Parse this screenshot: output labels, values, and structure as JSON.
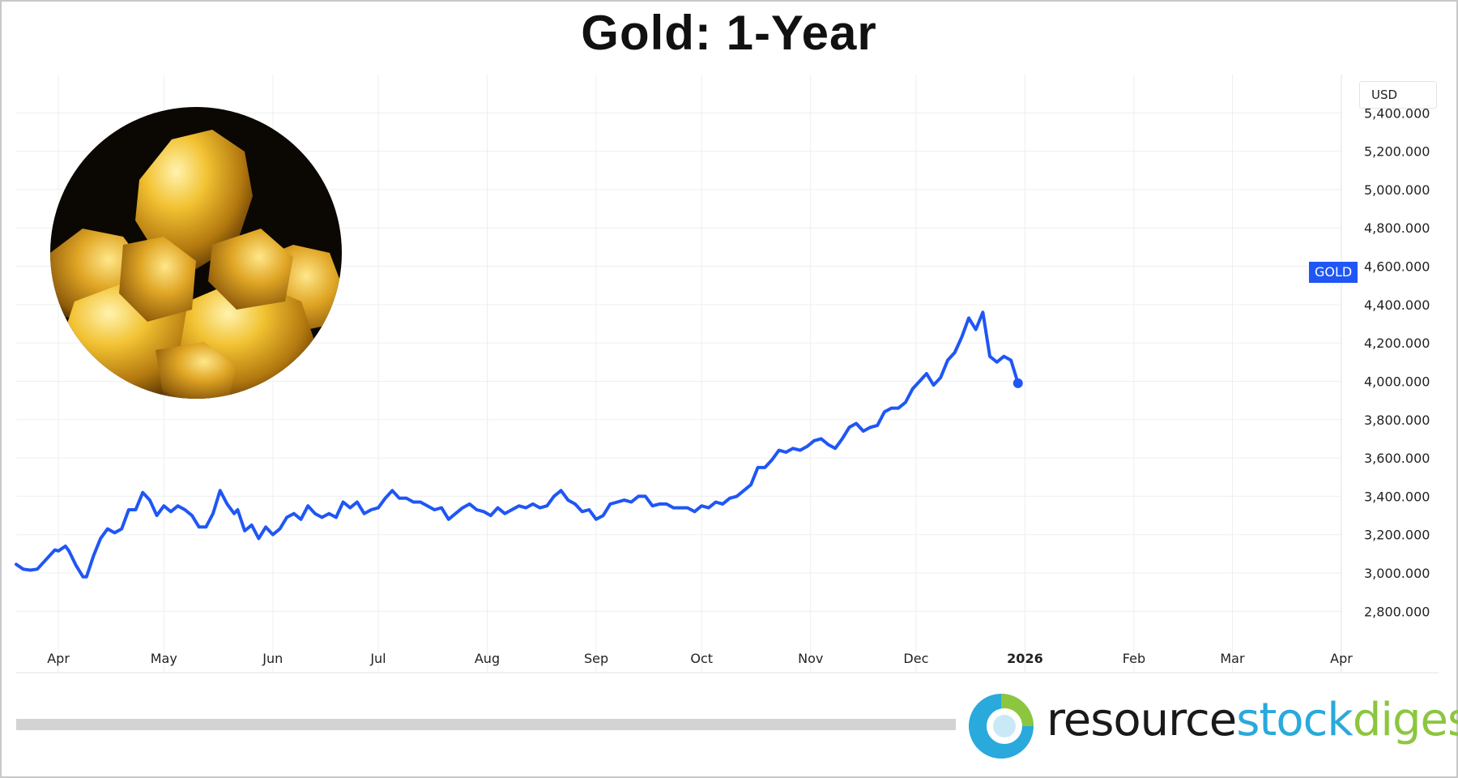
{
  "chart_data": {
    "type": "line",
    "title": "Gold: 1-Year",
    "currency": "USD",
    "y_ticks": [
      "2,800.000",
      "3,000.000",
      "3,200.000",
      "3,400.000",
      "3,600.000",
      "3,800.000",
      "4,000.000",
      "4,200.000",
      "4,400.000",
      "4,600.000",
      "4,800.000",
      "5,000.000",
      "5,200.000",
      "5,400.000"
    ],
    "ylim": [
      2700,
      5600
    ],
    "x_ticks": [
      {
        "label": "Apr",
        "date": "2025-04-01"
      },
      {
        "label": "May",
        "date": "2025-05-01"
      },
      {
        "label": "Jun",
        "date": "2025-06-01"
      },
      {
        "label": "Jul",
        "date": "2025-07-01"
      },
      {
        "label": "Aug",
        "date": "2025-08-01"
      },
      {
        "label": "Sep",
        "date": "2025-09-01"
      },
      {
        "label": "Oct",
        "date": "2025-10-01"
      },
      {
        "label": "Nov",
        "date": "2025-11-01"
      },
      {
        "label": "Dec",
        "date": "2025-12-01"
      },
      {
        "label": "2026",
        "date": "2026-01-01",
        "bold": true
      },
      {
        "label": "Feb",
        "date": "2026-02-01"
      },
      {
        "label": "Mar",
        "date": "2026-03-01"
      },
      {
        "label": "Apr",
        "date": "2026-04-01"
      }
    ],
    "xlim": [
      "2025-03-20",
      "2026-04-01"
    ],
    "grid": true,
    "series": [
      {
        "name": "GOLD",
        "color": "#1f56f5",
        "points": [
          [
            "2025-03-20",
            3045
          ],
          [
            "2025-03-22",
            3020
          ],
          [
            "2025-03-24",
            3015
          ],
          [
            "2025-03-26",
            3020
          ],
          [
            "2025-03-28",
            3060
          ],
          [
            "2025-03-31",
            3120
          ],
          [
            "2025-04-01",
            3115
          ],
          [
            "2025-04-03",
            3140
          ],
          [
            "2025-04-04",
            3115
          ],
          [
            "2025-04-06",
            3040
          ],
          [
            "2025-04-08",
            2980
          ],
          [
            "2025-04-09",
            2980
          ],
          [
            "2025-04-11",
            3090
          ],
          [
            "2025-04-13",
            3180
          ],
          [
            "2025-04-15",
            3230
          ],
          [
            "2025-04-17",
            3210
          ],
          [
            "2025-04-19",
            3230
          ],
          [
            "2025-04-21",
            3330
          ],
          [
            "2025-04-23",
            3330
          ],
          [
            "2025-04-25",
            3420
          ],
          [
            "2025-04-27",
            3380
          ],
          [
            "2025-04-29",
            3300
          ],
          [
            "2025-05-01",
            3350
          ],
          [
            "2025-05-03",
            3320
          ],
          [
            "2025-05-05",
            3350
          ],
          [
            "2025-05-07",
            3330
          ],
          [
            "2025-05-09",
            3300
          ],
          [
            "2025-05-11",
            3240
          ],
          [
            "2025-05-13",
            3240
          ],
          [
            "2025-05-15",
            3310
          ],
          [
            "2025-05-17",
            3430
          ],
          [
            "2025-05-19",
            3360
          ],
          [
            "2025-05-21",
            3310
          ],
          [
            "2025-05-22",
            3330
          ],
          [
            "2025-05-24",
            3220
          ],
          [
            "2025-05-26",
            3250
          ],
          [
            "2025-05-28",
            3180
          ],
          [
            "2025-05-30",
            3240
          ],
          [
            "2025-06-01",
            3200
          ],
          [
            "2025-06-03",
            3230
          ],
          [
            "2025-06-05",
            3290
          ],
          [
            "2025-06-07",
            3310
          ],
          [
            "2025-06-09",
            3280
          ],
          [
            "2025-06-11",
            3350
          ],
          [
            "2025-06-13",
            3310
          ],
          [
            "2025-06-15",
            3290
          ],
          [
            "2025-06-17",
            3310
          ],
          [
            "2025-06-19",
            3290
          ],
          [
            "2025-06-21",
            3370
          ],
          [
            "2025-06-23",
            3340
          ],
          [
            "2025-06-25",
            3370
          ],
          [
            "2025-06-27",
            3310
          ],
          [
            "2025-06-29",
            3330
          ],
          [
            "2025-07-01",
            3340
          ],
          [
            "2025-07-03",
            3390
          ],
          [
            "2025-07-05",
            3430
          ],
          [
            "2025-07-07",
            3390
          ],
          [
            "2025-07-09",
            3390
          ],
          [
            "2025-07-11",
            3370
          ],
          [
            "2025-07-13",
            3370
          ],
          [
            "2025-07-15",
            3350
          ],
          [
            "2025-07-17",
            3330
          ],
          [
            "2025-07-19",
            3340
          ],
          [
            "2025-07-21",
            3280
          ],
          [
            "2025-07-23",
            3310
          ],
          [
            "2025-07-25",
            3340
          ],
          [
            "2025-07-27",
            3360
          ],
          [
            "2025-07-29",
            3330
          ],
          [
            "2025-07-31",
            3320
          ],
          [
            "2025-08-02",
            3300
          ],
          [
            "2025-08-04",
            3340
          ],
          [
            "2025-08-06",
            3310
          ],
          [
            "2025-08-08",
            3330
          ],
          [
            "2025-08-10",
            3350
          ],
          [
            "2025-08-12",
            3340
          ],
          [
            "2025-08-14",
            3360
          ],
          [
            "2025-08-16",
            3340
          ],
          [
            "2025-08-18",
            3350
          ],
          [
            "2025-08-20",
            3400
          ],
          [
            "2025-08-22",
            3430
          ],
          [
            "2025-08-24",
            3380
          ],
          [
            "2025-08-26",
            3360
          ],
          [
            "2025-08-28",
            3320
          ],
          [
            "2025-08-30",
            3330
          ],
          [
            "2025-09-01",
            3280
          ],
          [
            "2025-09-03",
            3300
          ],
          [
            "2025-09-05",
            3360
          ],
          [
            "2025-09-07",
            3370
          ],
          [
            "2025-09-09",
            3380
          ],
          [
            "2025-09-11",
            3370
          ],
          [
            "2025-09-13",
            3400
          ],
          [
            "2025-09-15",
            3400
          ],
          [
            "2025-09-17",
            3350
          ],
          [
            "2025-09-19",
            3360
          ],
          [
            "2025-09-21",
            3360
          ],
          [
            "2025-09-23",
            3340
          ],
          [
            "2025-09-25",
            3340
          ],
          [
            "2025-09-27",
            3340
          ],
          [
            "2025-09-29",
            3320
          ],
          [
            "2025-10-01",
            3350
          ],
          [
            "2025-10-03",
            3340
          ],
          [
            "2025-10-05",
            3370
          ],
          [
            "2025-10-07",
            3360
          ],
          [
            "2025-10-09",
            3390
          ],
          [
            "2025-10-11",
            3400
          ],
          [
            "2025-10-13",
            3430
          ],
          [
            "2025-10-15",
            3460
          ],
          [
            "2025-10-17",
            3550
          ],
          [
            "2025-10-19",
            3550
          ],
          [
            "2025-10-21",
            3590
          ],
          [
            "2025-10-23",
            3640
          ],
          [
            "2025-10-25",
            3630
          ],
          [
            "2025-10-27",
            3650
          ],
          [
            "2025-10-29",
            3640
          ],
          [
            "2025-10-31",
            3660
          ],
          [
            "2025-11-02",
            3690
          ],
          [
            "2025-11-04",
            3700
          ],
          [
            "2025-11-06",
            3670
          ],
          [
            "2025-11-08",
            3650
          ],
          [
            "2025-11-10",
            3700
          ],
          [
            "2025-11-12",
            3760
          ],
          [
            "2025-11-14",
            3780
          ],
          [
            "2025-11-16",
            3740
          ],
          [
            "2025-11-18",
            3760
          ],
          [
            "2025-11-20",
            3770
          ],
          [
            "2025-11-22",
            3840
          ],
          [
            "2025-11-24",
            3860
          ],
          [
            "2025-11-26",
            3860
          ],
          [
            "2025-11-28",
            3890
          ],
          [
            "2025-11-30",
            3960
          ],
          [
            "2025-12-02",
            4000
          ],
          [
            "2025-12-04",
            4040
          ],
          [
            "2025-12-06",
            3980
          ],
          [
            "2025-12-08",
            4020
          ],
          [
            "2025-12-10",
            4110
          ],
          [
            "2025-12-12",
            4150
          ],
          [
            "2025-12-14",
            4230
          ],
          [
            "2025-12-16",
            4330
          ],
          [
            "2025-12-18",
            4270
          ],
          [
            "2025-12-20",
            4360
          ],
          [
            "2025-12-22",
            4130
          ],
          [
            "2025-12-24",
            4100
          ],
          [
            "2025-12-26",
            4130
          ],
          [
            "2025-12-28",
            4110
          ],
          [
            "2025-12-30",
            3990
          ]
        ]
      }
    ],
    "last_label": "GOLD"
  },
  "branding": {
    "word1": "resource",
    "word2": "stock",
    "word3": "digest",
    "color1": "#1a1a1a",
    "color2": "#29a9dc",
    "color3": "#8cc63f"
  },
  "photo": {
    "subject": "gold nuggets"
  }
}
